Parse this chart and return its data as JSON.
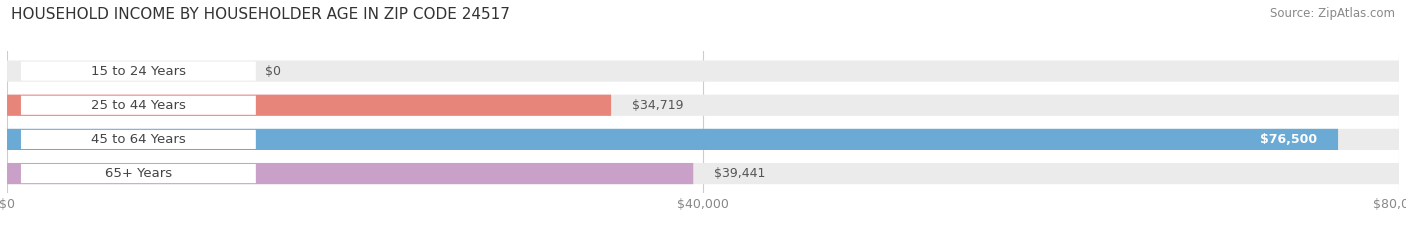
{
  "title": "HOUSEHOLD INCOME BY HOUSEHOLDER AGE IN ZIP CODE 24517",
  "source": "Source: ZipAtlas.com",
  "categories": [
    "15 to 24 Years",
    "25 to 44 Years",
    "45 to 64 Years",
    "65+ Years"
  ],
  "values": [
    0,
    34719,
    76500,
    39441
  ],
  "value_labels": [
    "$0",
    "$34,719",
    "$76,500",
    "$39,441"
  ],
  "bar_colors": [
    "#f0c987",
    "#e8857a",
    "#6aaad4",
    "#c9a0c8"
  ],
  "bar_bg_color": "#ebebeb",
  "xlim": [
    0,
    80000
  ],
  "xtick_values": [
    0,
    40000,
    80000
  ],
  "xtick_labels": [
    "$0",
    "$40,000",
    "$80,000"
  ],
  "title_fontsize": 11,
  "source_fontsize": 8.5,
  "label_fontsize": 9.5,
  "value_fontsize": 9,
  "bar_height": 0.62,
  "background_color": "#ffffff",
  "label_text_color": "#444444",
  "value_label_color_inside": "#ffffff",
  "value_label_color_outside": "#555555",
  "grid_color": "#cccccc",
  "tick_color": "#888888"
}
